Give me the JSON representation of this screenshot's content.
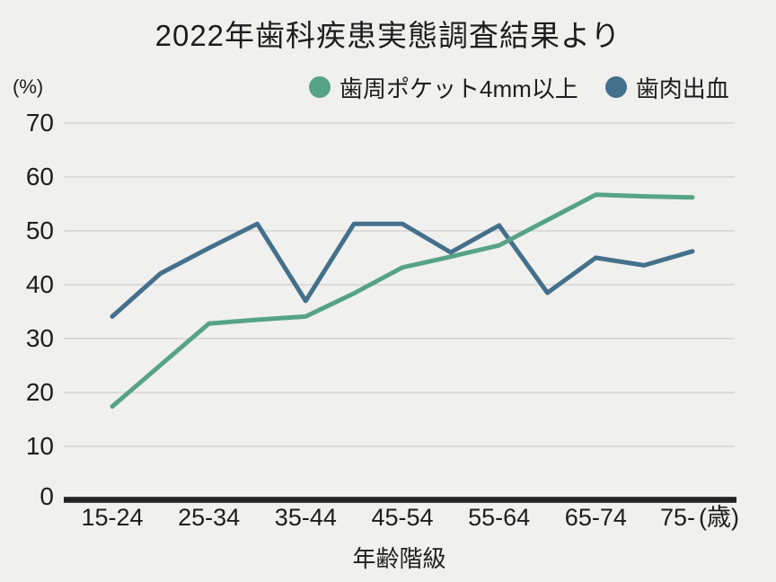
{
  "title": "2022年歯科疾患実態調査結果より",
  "y_axis": {
    "unit": "(%)",
    "ticks": [
      70,
      60,
      50,
      40,
      30,
      20,
      10,
      0
    ]
  },
  "x_axis": {
    "title": "年齢階級",
    "tick_labels": [
      "15-24",
      "25-34",
      "35-44",
      "45-54",
      "55-64",
      "65-74",
      "75-"
    ],
    "unit": "(歳)"
  },
  "legend": [
    {
      "label": "歯周ポケット4mm以上",
      "color": "#57a385"
    },
    {
      "label": "歯肉出血",
      "color": "#44708b"
    }
  ],
  "colors": {
    "background": "#f0f0ee",
    "grid": "#d4d4d2",
    "axis": "#232323",
    "text": "#1d1d1d"
  },
  "chart_data": {
    "type": "line",
    "title": "2022年歯科疾患実態調査結果より",
    "xlabel": "年齢階級",
    "ylabel": "(%)",
    "ylim": [
      0,
      70
    ],
    "grid": "horizontal",
    "legend_position": "top",
    "points_per_series": 13,
    "tick_point_indices": [
      0,
      2,
      4,
      6,
      8,
      10,
      12
    ],
    "tick_labels": [
      "15-24",
      "25-34",
      "35-44",
      "45-54",
      "55-64",
      "65-74",
      "75-"
    ],
    "series": [
      {
        "name": "歯周ポケット4mm以上",
        "color": "#57a385",
        "values": [
          17.4,
          25.1,
          32.8,
          33.5,
          34.1,
          38.4,
          43.2,
          45.2,
          47.3,
          52.0,
          56.7,
          56.4,
          56.2
        ]
      },
      {
        "name": "歯肉出血",
        "color": "#44708b",
        "values": [
          34.1,
          42.1,
          46.8,
          51.3,
          37.0,
          51.3,
          51.3,
          46.0,
          51.0,
          38.5,
          45.0,
          43.6,
          46.2
        ]
      }
    ]
  }
}
